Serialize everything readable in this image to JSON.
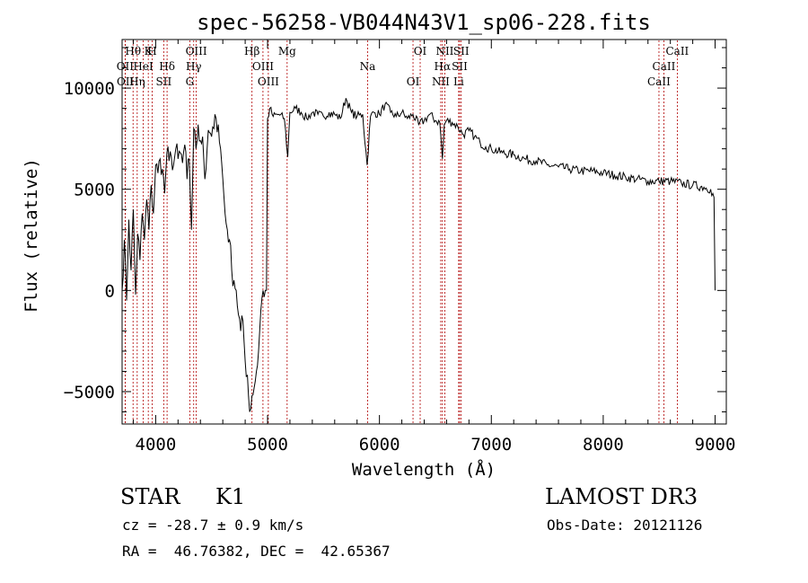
{
  "chart_data": {
    "type": "line",
    "title": "spec-56258-VB044N43V1_sp06-228.fits",
    "xlabel": "Wavelength (Å)",
    "ylabel": "Flux (relative)",
    "xlim": [
      3700,
      9100
    ],
    "ylim": [
      -6600,
      12400
    ],
    "xticks": [
      4000,
      5000,
      6000,
      7000,
      8000,
      9000
    ],
    "yticks": [
      -5000,
      0,
      5000,
      10000
    ],
    "series": [
      {
        "name": "flux",
        "x": [
          3700,
          3720,
          3740,
          3760,
          3780,
          3800,
          3820,
          3840,
          3860,
          3880,
          3900,
          3920,
          3940,
          3960,
          3980,
          4000,
          4020,
          4040,
          4060,
          4080,
          4100,
          4120,
          4140,
          4160,
          4180,
          4200,
          4220,
          4240,
          4260,
          4280,
          4300,
          4320,
          4340,
          4360,
          4380,
          4400,
          4420,
          4440,
          4460,
          4480,
          4500,
          4520,
          4540,
          4560,
          4580,
          4600,
          4620,
          4640,
          4660,
          4680,
          4700,
          4720,
          4740,
          4760,
          4780,
          4800,
          4820,
          4840,
          4860,
          4880,
          4900,
          4920,
          4940,
          4960,
          4980,
          4990,
          5000,
          5010,
          5020,
          5050,
          5100,
          5150,
          5180,
          5200,
          5250,
          5300,
          5350,
          5400,
          5450,
          5500,
          5550,
          5600,
          5650,
          5700,
          5750,
          5800,
          5850,
          5890,
          5920,
          5950,
          6000,
          6050,
          6100,
          6150,
          6200,
          6250,
          6300,
          6350,
          6400,
          6450,
          6500,
          6540,
          6563,
          6580,
          6600,
          6650,
          6700,
          6750,
          6800,
          6850,
          6900,
          6950,
          7000,
          7100,
          7200,
          7300,
          7400,
          7500,
          7600,
          7700,
          7800,
          7900,
          8000,
          8100,
          8200,
          8300,
          8400,
          8500,
          8600,
          8700,
          8800,
          8900,
          8960,
          8990,
          9000
        ],
        "y": [
          0,
          2500,
          -500,
          3500,
          1000,
          4000,
          -200,
          2800,
          1500,
          3800,
          2500,
          4500,
          3000,
          5200,
          3800,
          6200,
          5800,
          6500,
          6000,
          4800,
          6800,
          6400,
          6600,
          6200,
          7000,
          6500,
          6800,
          6300,
          7200,
          5500,
          6500,
          3000,
          8000,
          7000,
          8200,
          7400,
          7600,
          5500,
          7000,
          7800,
          7600,
          8000,
          8500,
          8200,
          7000,
          5500,
          3800,
          3000,
          2500,
          1000,
          500,
          0,
          -1200,
          -2000,
          -1500,
          -3500,
          -4200,
          -6000,
          -5200,
          -4800,
          -4000,
          -3000,
          -1000,
          0,
          0,
          0,
          8500,
          8600,
          9000,
          8600,
          8700,
          8500,
          6600,
          8800,
          9000,
          8800,
          8500,
          8800,
          8700,
          8600,
          8800,
          8700,
          8500,
          9500,
          8800,
          8600,
          8700,
          6200,
          8600,
          8800,
          8700,
          9200,
          8800,
          8600,
          8800,
          8500,
          8700,
          8200,
          8400,
          8700,
          8400,
          8300,
          6500,
          8200,
          8400,
          8300,
          8100,
          7700,
          7900,
          7600,
          7300,
          7100,
          7000,
          6800,
          6700,
          6500,
          6400,
          6200,
          6100,
          6000,
          5900,
          5900,
          5800,
          5700,
          5600,
          5500,
          5400,
          5400,
          5400,
          5300,
          5200,
          5100,
          5000,
          4600,
          0
        ]
      }
    ],
    "line_labels": [
      {
        "label": "Hθ",
        "wavelength": 3798
      },
      {
        "label": "OII",
        "wavelength": 3727
      },
      {
        "label": "OII",
        "wavelength": 3729
      },
      {
        "label": "K",
        "wavelength": 3934
      },
      {
        "label": "HeI",
        "wavelength": 3889
      },
      {
        "label": "Hη",
        "wavelength": 3835
      },
      {
        "label": "H",
        "wavelength": 3969
      },
      {
        "label": "Hδ",
        "wavelength": 4102
      },
      {
        "label": "SII",
        "wavelength": 4072
      },
      {
        "label": "OIII",
        "wavelength": 4363
      },
      {
        "label": "Hγ",
        "wavelength": 4340
      },
      {
        "label": "G",
        "wavelength": 4305
      },
      {
        "label": "Hβ",
        "wavelength": 4861
      },
      {
        "label": "OIII",
        "wavelength": 4959
      },
      {
        "label": "OIII",
        "wavelength": 5007
      },
      {
        "label": "Mg",
        "wavelength": 5175
      },
      {
        "label": "Na",
        "wavelength": 5894
      },
      {
        "label": "OI",
        "wavelength": 6300
      },
      {
        "label": "OI",
        "wavelength": 6364
      },
      {
        "label": "Hα",
        "wavelength": 6563
      },
      {
        "label": "NII",
        "wavelength": 6548
      },
      {
        "label": "NII",
        "wavelength": 6584
      },
      {
        "label": "SII",
        "wavelength": 6717
      },
      {
        "label": "Li",
        "wavelength": 6708
      },
      {
        "label": "SII",
        "wavelength": 6731
      },
      {
        "label": "CaII",
        "wavelength": 8542
      },
      {
        "label": "CaII",
        "wavelength": 8498
      },
      {
        "label": "CaII",
        "wavelength": 8662
      }
    ]
  },
  "info": {
    "class_label": "STAR",
    "subclass": "K1",
    "survey": "LAMOST DR3",
    "cz": "cz = -28.7 ± 0.9 km/s",
    "obs_date": "Obs-Date: 20121126",
    "coords": "RA =  46.76382, DEC =  42.65367"
  }
}
